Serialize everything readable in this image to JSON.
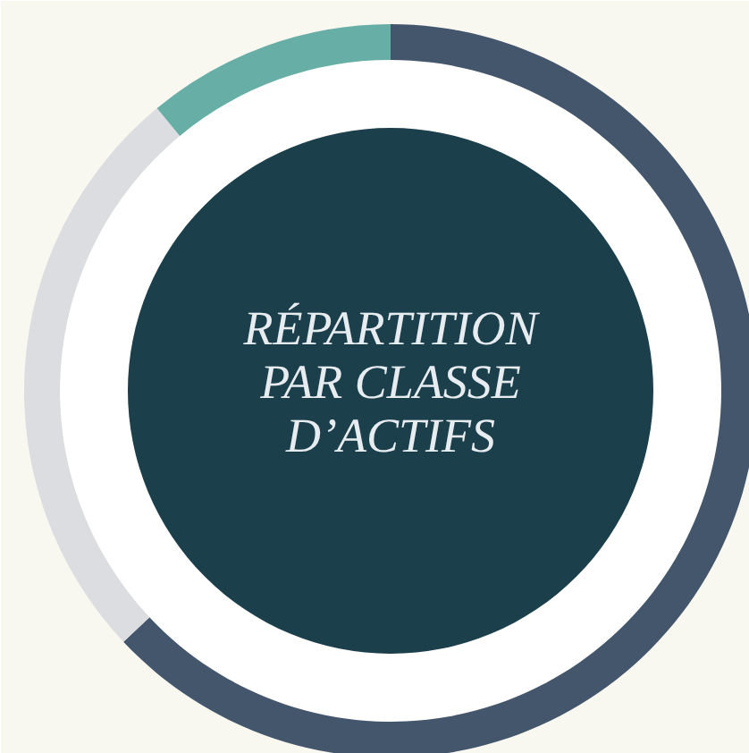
{
  "chart_data": {
    "type": "donut",
    "title": "RÉPARTITION\nPAR CLASSE\nD’ACTIFS",
    "categories": [
      null,
      null,
      null
    ],
    "values": [
      63,
      26,
      11
    ],
    "colors": [
      "#44566c",
      "#dcdde0",
      "#66aea6"
    ]
  }
}
